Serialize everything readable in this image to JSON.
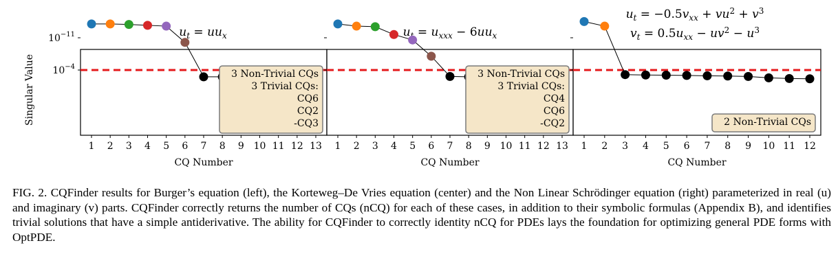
{
  "figure": {
    "ylabel": "Singular Value",
    "xlabel": "CQ Number",
    "threshold_color": "#e41a1c",
    "chart_data": [
      {
        "type": "scatter",
        "title": "u_t = u u_x",
        "title_lines": [
          "ut = uux"
        ],
        "x": [
          1,
          2,
          3,
          4,
          5,
          6,
          7,
          8,
          9,
          10,
          11,
          12,
          13
        ],
        "y": [
          1e-14,
          1e-14,
          1.3e-14,
          2e-14,
          3e-14,
          1e-10,
          0.003,
          0.003,
          0.0035,
          0.004,
          0.006,
          0.007,
          0.008
        ],
        "point_colors": [
          "#1f77b4",
          "#ff7f0e",
          "#2ca02c",
          "#d62728",
          "#9467bd",
          "#8c564b",
          "#000000",
          "#000000",
          "#000000",
          "#000000",
          "#000000",
          "#000000",
          "#000000"
        ],
        "xticks": [
          "1",
          "2",
          "3",
          "4",
          "5",
          "6",
          "7",
          "8",
          "9",
          "10",
          "11",
          "12",
          "13"
        ],
        "yticks": [
          "10−4",
          "10−11"
        ],
        "ytick_values": [
          0.0001,
          1e-11
        ],
        "threshold": 0.0001,
        "annotation": [
          "3 Non-Trivial CQs",
          "3 Trivial CQs:",
          "CQ6",
          "CQ2",
          "-CQ3"
        ]
      },
      {
        "type": "scatter",
        "title_lines": [
          "ut = uxxx − 6uux"
        ],
        "x": [
          1,
          2,
          3,
          4,
          5,
          6,
          7,
          8,
          9,
          10,
          11,
          12,
          13
        ],
        "y": [
          1e-14,
          3e-14,
          4e-14,
          2e-12,
          3e-11,
          1e-07,
          0.0025,
          0.003,
          0.0035,
          0.004,
          0.006,
          0.007,
          0.008
        ],
        "point_colors": [
          "#1f77b4",
          "#ff7f0e",
          "#2ca02c",
          "#d62728",
          "#9467bd",
          "#8c564b",
          "#000000",
          "#000000",
          "#000000",
          "#000000",
          "#000000",
          "#000000",
          "#000000"
        ],
        "xticks": [
          "1",
          "2",
          "3",
          "4",
          "5",
          "6",
          "7",
          "8",
          "9",
          "10",
          "11",
          "12",
          "13"
        ],
        "annotation": [
          "3 Non-Trivial CQs",
          "3 Trivial CQs:",
          "CQ4",
          "CQ6",
          "-CQ2"
        ]
      },
      {
        "type": "scatter",
        "title_lines": [
          "ut = −0.5vxx + vu² + v³",
          "vt = 0.5uxx − uv² − u³"
        ],
        "x": [
          1,
          2,
          3,
          4,
          5,
          6,
          7,
          8,
          9,
          10,
          11,
          12
        ],
        "y": [
          3e-15,
          3e-14,
          0.001,
          0.0012,
          0.0013,
          0.0015,
          0.0018,
          0.002,
          0.0025,
          0.005,
          0.007,
          0.008
        ],
        "point_colors": [
          "#1f77b4",
          "#ff7f0e",
          "#000000",
          "#000000",
          "#000000",
          "#000000",
          "#000000",
          "#000000",
          "#000000",
          "#000000",
          "#000000",
          "#000000"
        ],
        "xticks": [
          "1",
          "2",
          "3",
          "4",
          "5",
          "6",
          "7",
          "8",
          "9",
          "10",
          "11",
          "12"
        ],
        "annotation": [
          "2 Non-Trivial CQs"
        ]
      }
    ]
  },
  "caption": {
    "label": "FIG. 2.",
    "text": "CQFinder results for Burger’s equation (left), the Korteweg–De Vries equation (center) and the Non Linear Schrödinger equation (right) parameterized in real (u) and imaginary (v) parts. CQFinder correctly returns the number of CQs (nCQ) for each of these cases, in addition to their symbolic formulas (Appendix B), and identifies trivial solutions that have a simple antiderivative. The ability for CQFinder to correctly identity nCQ for PDEs lays the foundation for optimizing general PDE forms with OptPDE."
  }
}
